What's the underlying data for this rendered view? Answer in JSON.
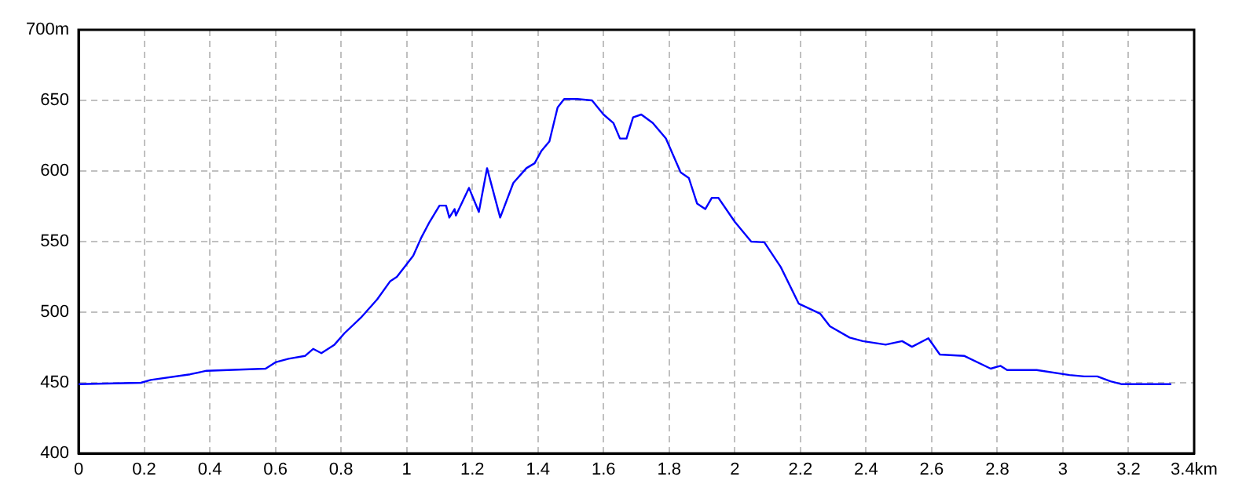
{
  "chart_data": {
    "type": "line",
    "x": [
      0,
      0.19,
      0.22,
      0.34,
      0.39,
      0.57,
      0.6,
      0.64,
      0.69,
      0.715,
      0.74,
      0.78,
      0.81,
      0.86,
      0.91,
      0.95,
      0.97,
      0.99,
      1.02,
      1.045,
      1.07,
      1.1,
      1.12,
      1.13,
      1.146,
      1.15,
      1.19,
      1.22,
      1.245,
      1.285,
      1.325,
      1.365,
      1.39,
      1.41,
      1.435,
      1.46,
      1.48,
      1.52,
      1.565,
      1.6,
      1.63,
      1.65,
      1.67,
      1.69,
      1.715,
      1.75,
      1.79,
      1.835,
      1.86,
      1.885,
      1.91,
      1.93,
      1.95,
      2.0,
      2.05,
      2.09,
      2.14,
      2.195,
      2.26,
      2.29,
      2.35,
      2.39,
      2.46,
      2.51,
      2.54,
      2.59,
      2.625,
      2.7,
      2.78,
      2.81,
      2.83,
      2.92,
      3.02,
      3.065,
      3.105,
      3.145,
      3.18,
      3.33
    ],
    "series": [
      {
        "color": "#0000ff",
        "values": [
          449,
          450,
          452,
          456,
          458.5,
          460,
          464.5,
          467,
          469,
          474,
          471,
          477,
          485,
          496,
          509,
          522,
          525,
          531,
          540,
          553,
          564,
          575.5,
          575.5,
          567,
          573,
          568.5,
          588,
          571,
          602,
          567,
          591.5,
          602,
          605.5,
          614,
          621,
          645,
          651,
          651,
          650,
          640,
          634,
          623,
          623,
          638,
          640,
          634,
          623,
          599,
          595,
          577,
          573,
          581,
          581,
          564,
          550,
          549.5,
          532,
          506,
          499,
          490,
          482,
          479.5,
          477,
          479.5,
          475.5,
          481.5,
          470,
          469,
          460,
          462,
          459,
          459,
          455.5,
          454.5,
          454.5,
          451,
          449,
          449
        ]
      }
    ],
    "xlim": [
      0,
      3.4
    ],
    "xticks": [
      0,
      0.2,
      0.4,
      0.6,
      0.8,
      1,
      1.2,
      1.4,
      1.6,
      1.8,
      2,
      2.2,
      2.4,
      2.6,
      2.8,
      3,
      3.2,
      {
        "value": 3.4,
        "label": "3.4km"
      }
    ],
    "ylim": [
      400,
      700
    ],
    "yticks": [
      400,
      450,
      500,
      550,
      600,
      650,
      {
        "value": 700,
        "label": "700m"
      }
    ],
    "grid": true,
    "legend": false,
    "marker": "none",
    "line_style": "solid"
  }
}
